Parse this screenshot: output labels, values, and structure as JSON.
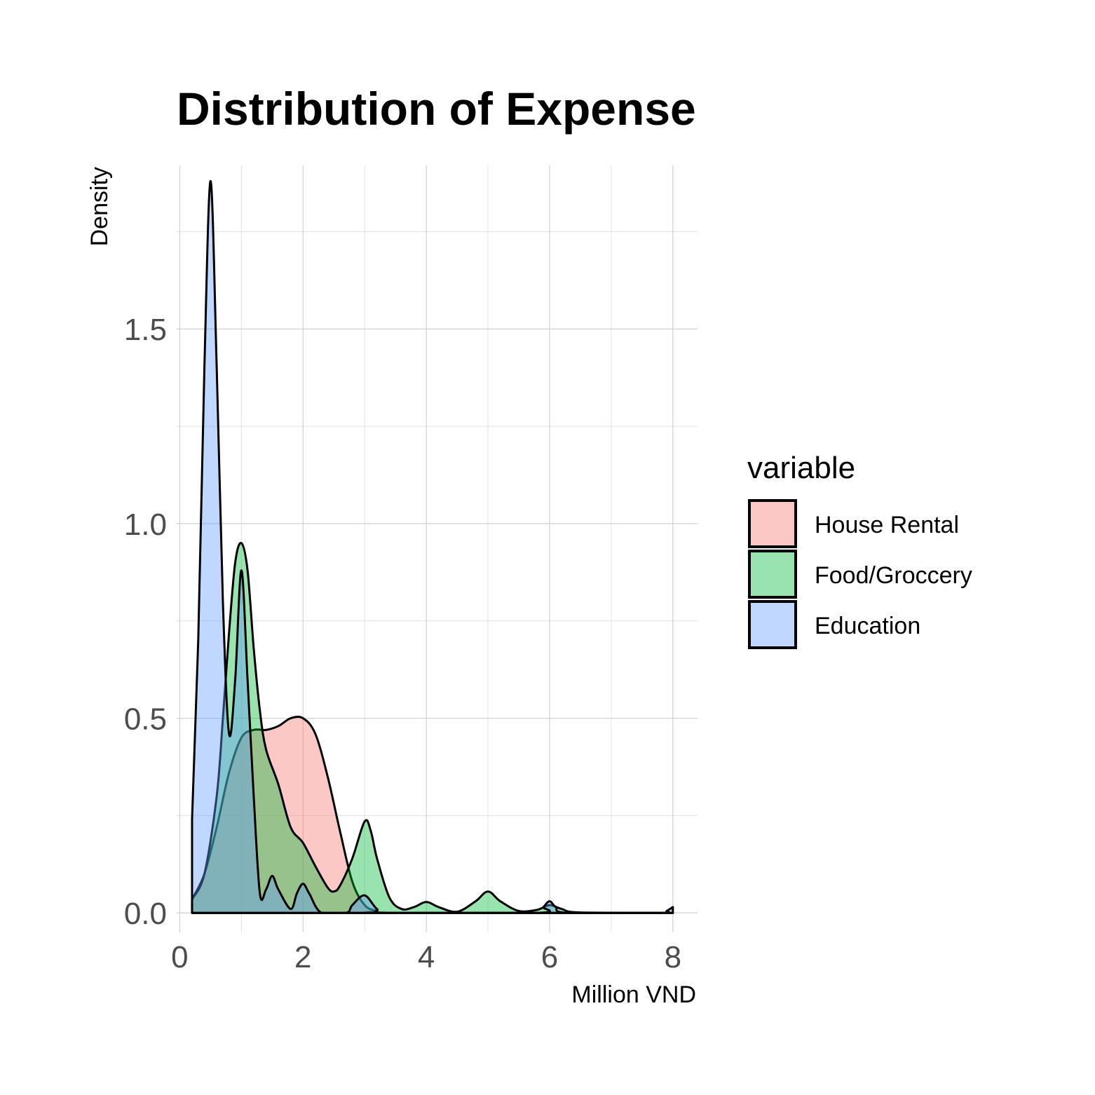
{
  "chart_data": {
    "type": "area",
    "title": "Distribution of Expense",
    "xlabel": "Million VND",
    "ylabel": "Density",
    "xlim": [
      -0.05,
      8.4
    ],
    "ylim": [
      -0.05,
      1.92
    ],
    "x_ticks": [
      0,
      2,
      4,
      6,
      8
    ],
    "x_tick_labels": [
      "0",
      "2",
      "4",
      "6",
      "8"
    ],
    "y_ticks": [
      0,
      0.5,
      1,
      1.5
    ],
    "y_tick_labels": [
      "0.0",
      "0.5",
      "1.0",
      "1.5"
    ],
    "grid": true,
    "legend": {
      "title": "variable",
      "position": "right"
    },
    "series": [
      {
        "name": "House Rental",
        "color": "#F8766D",
        "points": [
          [
            0.2,
            0.035
          ],
          [
            0.4,
            0.1
          ],
          [
            0.6,
            0.22
          ],
          [
            0.8,
            0.36
          ],
          [
            1.0,
            0.45
          ],
          [
            1.2,
            0.47
          ],
          [
            1.4,
            0.47
          ],
          [
            1.6,
            0.48
          ],
          [
            1.8,
            0.5
          ],
          [
            2.0,
            0.5
          ],
          [
            2.2,
            0.46
          ],
          [
            2.4,
            0.35
          ],
          [
            2.6,
            0.21
          ],
          [
            2.8,
            0.08
          ],
          [
            3.0,
            0.02
          ],
          [
            3.2,
            0.005
          ],
          [
            3.4,
            0.0
          ],
          [
            8.0,
            0.0
          ]
        ]
      },
      {
        "name": "Food/Groccery",
        "color": "#00BA38",
        "points": [
          [
            0.2,
            0.035
          ],
          [
            0.4,
            0.1
          ],
          [
            0.6,
            0.3
          ],
          [
            0.7,
            0.5
          ],
          [
            0.8,
            0.72
          ],
          [
            0.9,
            0.9
          ],
          [
            1.0,
            0.95
          ],
          [
            1.1,
            0.88
          ],
          [
            1.2,
            0.68
          ],
          [
            1.3,
            0.52
          ],
          [
            1.4,
            0.42
          ],
          [
            1.6,
            0.33
          ],
          [
            1.8,
            0.22
          ],
          [
            2.0,
            0.18
          ],
          [
            2.2,
            0.12
          ],
          [
            2.4,
            0.065
          ],
          [
            2.5,
            0.055
          ],
          [
            2.6,
            0.07
          ],
          [
            2.8,
            0.14
          ],
          [
            3.0,
            0.235
          ],
          [
            3.1,
            0.21
          ],
          [
            3.2,
            0.14
          ],
          [
            3.4,
            0.04
          ],
          [
            3.6,
            0.01
          ],
          [
            3.8,
            0.015
          ],
          [
            4.0,
            0.028
          ],
          [
            4.2,
            0.015
          ],
          [
            4.5,
            0.003
          ],
          [
            4.8,
            0.03
          ],
          [
            5.0,
            0.055
          ],
          [
            5.2,
            0.03
          ],
          [
            5.5,
            0.005
          ],
          [
            5.8,
            0.008
          ],
          [
            6.0,
            0.02
          ],
          [
            6.2,
            0.01
          ],
          [
            6.5,
            0.001
          ],
          [
            8.0,
            0.0
          ]
        ]
      },
      {
        "name": "Education",
        "color": "#619CFF",
        "points": [
          [
            0.2,
            0.24
          ],
          [
            0.3,
            0.7
          ],
          [
            0.4,
            1.4
          ],
          [
            0.5,
            1.88
          ],
          [
            0.6,
            1.4
          ],
          [
            0.7,
            0.8
          ],
          [
            0.8,
            0.46
          ],
          [
            0.9,
            0.6
          ],
          [
            1.0,
            0.88
          ],
          [
            1.1,
            0.6
          ],
          [
            1.2,
            0.3
          ],
          [
            1.3,
            0.05
          ],
          [
            1.4,
            0.06
          ],
          [
            1.5,
            0.095
          ],
          [
            1.6,
            0.06
          ],
          [
            1.8,
            0.01
          ],
          [
            1.9,
            0.05
          ],
          [
            2.0,
            0.075
          ],
          [
            2.1,
            0.05
          ],
          [
            2.3,
            0.0
          ],
          [
            2.7,
            0.0
          ],
          [
            2.8,
            0.02
          ],
          [
            3.0,
            0.045
          ],
          [
            3.2,
            0.01
          ],
          [
            3.4,
            0.0
          ],
          [
            5.8,
            0.0
          ],
          [
            5.9,
            0.015
          ],
          [
            6.0,
            0.03
          ],
          [
            6.1,
            0.015
          ],
          [
            6.3,
            0.0
          ],
          [
            7.8,
            0.0
          ],
          [
            7.9,
            0.005
          ],
          [
            8.0,
            0.015
          ]
        ]
      }
    ]
  }
}
